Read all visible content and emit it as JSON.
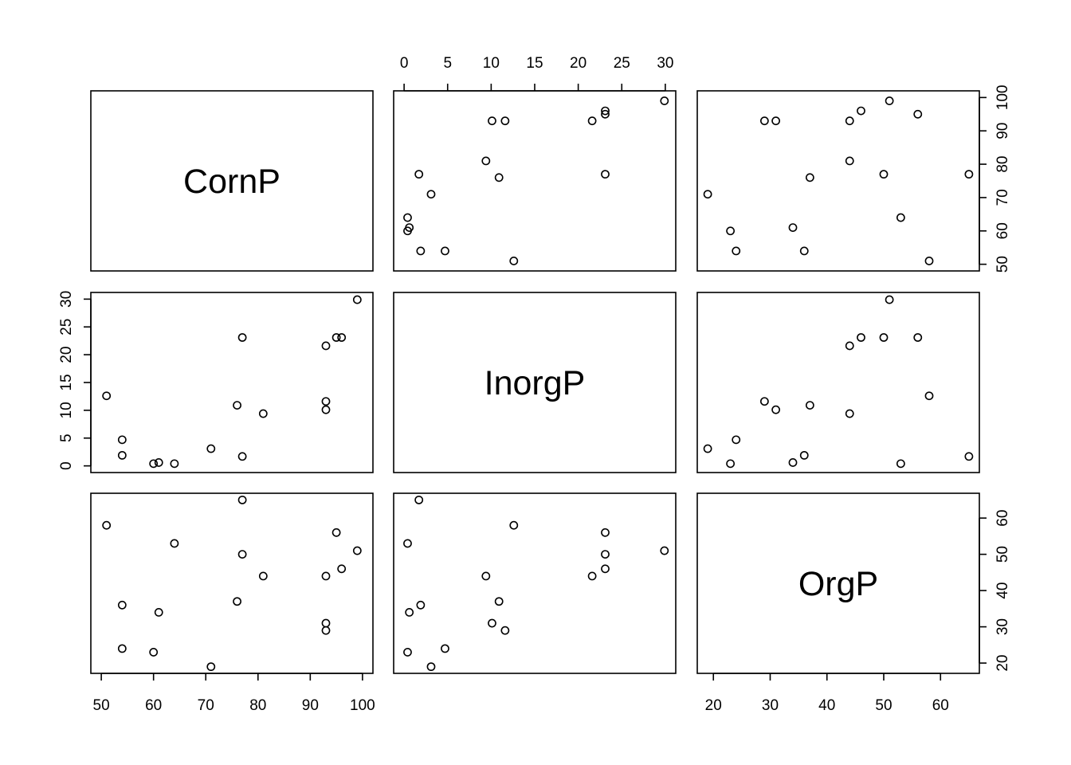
{
  "chart_data": {
    "type": "scatter",
    "variables": [
      "CornP",
      "InorgP",
      "OrgP"
    ],
    "observations": [
      {
        "CornP": 64,
        "InorgP": 0.4,
        "OrgP": 53
      },
      {
        "CornP": 60,
        "InorgP": 0.4,
        "OrgP": 23
      },
      {
        "CornP": 71,
        "InorgP": 3.1,
        "OrgP": 19
      },
      {
        "CornP": 61,
        "InorgP": 0.6,
        "OrgP": 34
      },
      {
        "CornP": 54,
        "InorgP": 4.7,
        "OrgP": 24
      },
      {
        "CornP": 77,
        "InorgP": 1.7,
        "OrgP": 65
      },
      {
        "CornP": 81,
        "InorgP": 9.4,
        "OrgP": 44
      },
      {
        "CornP": 93,
        "InorgP": 10.1,
        "OrgP": 31
      },
      {
        "CornP": 93,
        "InorgP": 11.6,
        "OrgP": 29
      },
      {
        "CornP": 51,
        "InorgP": 12.6,
        "OrgP": 58
      },
      {
        "CornP": 76,
        "InorgP": 10.9,
        "OrgP": 37
      },
      {
        "CornP": 96,
        "InorgP": 23.1,
        "OrgP": 46
      },
      {
        "CornP": 77,
        "InorgP": 23.1,
        "OrgP": 50
      },
      {
        "CornP": 93,
        "InorgP": 21.6,
        "OrgP": 44
      },
      {
        "CornP": 95,
        "InorgP": 23.1,
        "OrgP": 56
      },
      {
        "CornP": 54,
        "InorgP": 1.9,
        "OrgP": 36
      },
      {
        "CornP": 99,
        "InorgP": 29.9,
        "OrgP": 51
      }
    ],
    "axes": {
      "CornP": {
        "lim": [
          50,
          100
        ],
        "ticks": [
          "50",
          "60",
          "70",
          "80",
          "90",
          "100"
        ],
        "tick_values": [
          50,
          60,
          70,
          80,
          90,
          100
        ]
      },
      "InorgP": {
        "lim": [
          0,
          30
        ],
        "ticks": [
          "0",
          "5",
          "10",
          "15",
          "20",
          "25",
          "30"
        ],
        "tick_values": [
          0,
          5,
          10,
          15,
          20,
          25,
          30
        ]
      },
      "OrgP": {
        "lim": [
          19,
          65
        ],
        "ticks": [
          "20",
          "30",
          "40",
          "50",
          "60"
        ],
        "tick_values": [
          20,
          30,
          40,
          50,
          60
        ]
      }
    },
    "grid": false,
    "legend": "none"
  }
}
